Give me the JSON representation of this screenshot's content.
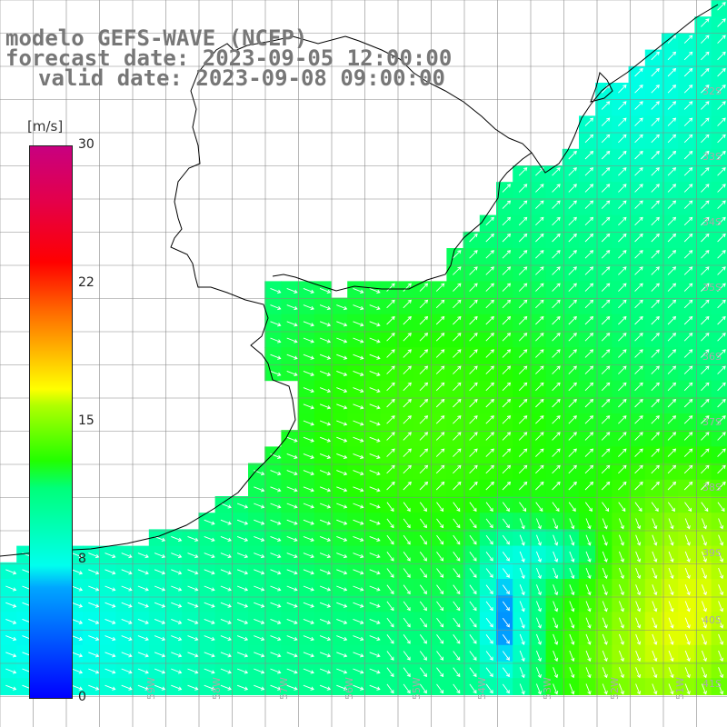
{
  "title": {
    "line1": "modelo GEFS-WAVE (NCEP)",
    "line2": "forecast date: 2023-09-05 12:00:00",
    "line3": "valid date: 2023-09-08 09:00:00"
  },
  "legend": {
    "unit": "[m/s]",
    "ticks": [
      "30",
      "22",
      "15",
      "8",
      "0"
    ]
  },
  "lat_labels": [
    "32S",
    "33S",
    "34S",
    "35S",
    "36S",
    "37S",
    "38S",
    "39S",
    "40S",
    "41S"
  ],
  "lon_labels": [
    "59W",
    "58W",
    "57W",
    "56W",
    "55W",
    "54W",
    "53W",
    "52W",
    "51W"
  ],
  "colors": {
    "land": "#ffffff",
    "grid": "#888888",
    "coast": "#000000",
    "arrows": "#ffffff"
  }
}
